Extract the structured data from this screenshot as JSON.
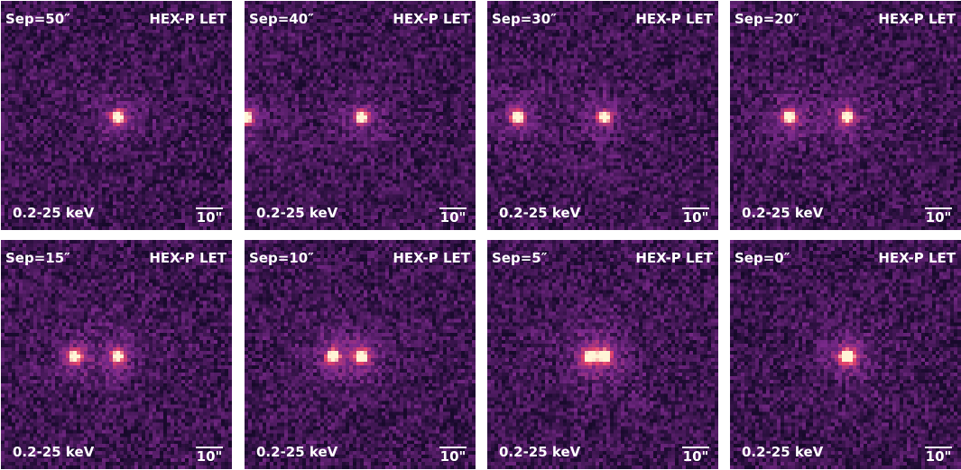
{
  "panels": [
    {
      "sep_label": "Sep=50″",
      "instrument": "HEX-P LET",
      "band": "0.2-25 keV",
      "scale": "10\"",
      "separation_arcsec": 50
    },
    {
      "sep_label": "Sep=40″",
      "instrument": "HEX-P LET",
      "band": "0.2-25 keV",
      "scale": "10\"",
      "separation_arcsec": 40
    },
    {
      "sep_label": "Sep=30″",
      "instrument": "HEX-P LET",
      "band": "0.2-25 keV",
      "scale": "10\"",
      "separation_arcsec": 30
    },
    {
      "sep_label": "Sep=20″",
      "instrument": "HEX-P LET",
      "band": "0.2-25 keV",
      "scale": "10\"",
      "separation_arcsec": 20
    },
    {
      "sep_label": "Sep=15″",
      "instrument": "HEX-P LET",
      "band": "0.2-25 keV",
      "scale": "10\"",
      "separation_arcsec": 15
    },
    {
      "sep_label": "Sep=10″",
      "instrument": "HEX-P LET",
      "band": "0.2-25 keV",
      "scale": "10\"",
      "separation_arcsec": 10
    },
    {
      "sep_label": "Sep=5″",
      "instrument": "HEX-P LET",
      "band": "0.2-25 keV",
      "scale": "10\"",
      "separation_arcsec": 5
    },
    {
      "sep_label": "Sep=0″",
      "instrument": "HEX-P LET",
      "band": "0.2-25 keV",
      "scale": "10\"",
      "separation_arcsec": 0
    }
  ],
  "colormap": {
    "background": "#1a0a2e",
    "mid": "#7b2a8c",
    "bright": "#e8456a",
    "peak": "#fff4d6"
  }
}
